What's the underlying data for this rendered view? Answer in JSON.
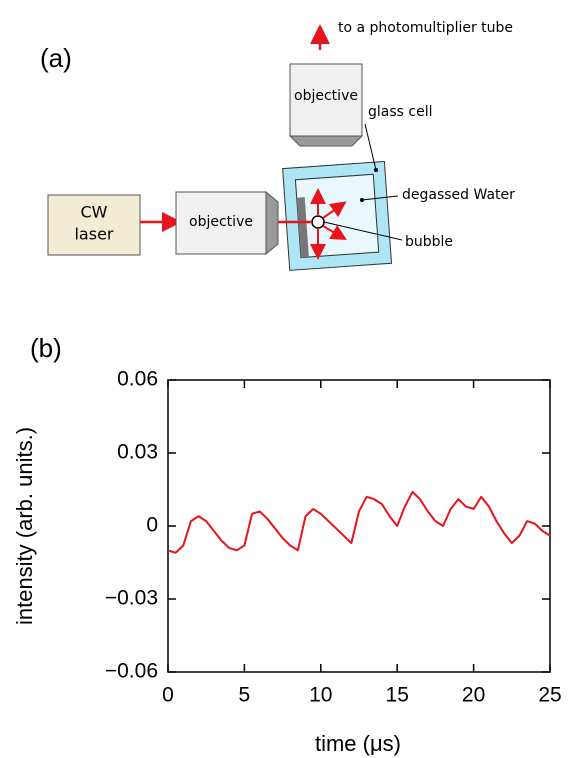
{
  "diagram": {
    "label": "(a)",
    "destination": "to a photomultiplier tube",
    "objective_top": "objective",
    "objective_left": "objective",
    "laser": [
      "CW",
      "laser"
    ],
    "glass_cell": "glass cell",
    "water": "degassed Water",
    "bubble": "bubble"
  },
  "chart_data": {
    "type": "line",
    "panel_label": "(b)",
    "x_label": "time (μs)",
    "y_label": "intensity (arb. units.)",
    "color": "#e8141b",
    "xlim": [
      0,
      25
    ],
    "xticks": [
      0,
      5,
      10,
      15,
      20,
      25
    ],
    "ylim": [
      -0.06,
      0.06
    ],
    "yticks": [
      {
        "value": -0.06,
        "label": "−0.06"
      },
      {
        "value": -0.03,
        "label": "−0.03"
      },
      0,
      0.03,
      0.06
    ],
    "x": [
      0,
      0.5,
      1,
      1.5,
      2,
      2.5,
      3,
      3.5,
      4,
      4.5,
      5,
      5.5,
      6,
      6.5,
      7,
      7.5,
      8,
      8.5,
      9,
      9.5,
      10,
      10.5,
      11,
      11.5,
      12,
      12.5,
      13,
      13.5,
      14,
      14.5,
      15,
      15.5,
      16,
      16.5,
      17,
      17.5,
      18,
      18.5,
      19,
      19.5,
      20,
      20.5,
      21,
      21.5,
      22,
      22.5,
      23,
      23.5,
      24,
      24.5,
      25
    ],
    "values": [
      -0.01,
      -0.011,
      -0.008,
      0.002,
      0.004,
      0.002,
      -0.002,
      -0.006,
      -0.009,
      -0.01,
      -0.008,
      0.005,
      0.006,
      0.003,
      -0.001,
      -0.005,
      -0.008,
      -0.01,
      0.004,
      0.007,
      0.005,
      0.002,
      -0.001,
      -0.004,
      -0.007,
      0.006,
      0.012,
      0.011,
      0.009,
      0.004,
      0.0,
      0.008,
      0.014,
      0.011,
      0.006,
      0.002,
      0.0,
      0.007,
      0.011,
      0.008,
      0.007,
      0.012,
      0.008,
      0.002,
      -0.003,
      -0.007,
      -0.004,
      0.002,
      0.001,
      -0.002,
      -0.004
    ]
  }
}
